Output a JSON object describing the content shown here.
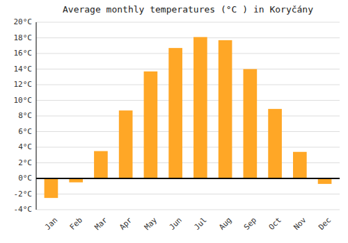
{
  "chart_data": {
    "type": "bar",
    "title": "Average monthly temperatures (°C ) in Koryčány",
    "categories": [
      "Jan",
      "Feb",
      "Mar",
      "Apr",
      "May",
      "Jun",
      "Jul",
      "Aug",
      "Sep",
      "Oct",
      "Nov",
      "Dec"
    ],
    "values": [
      -2.5,
      -0.5,
      3.5,
      8.7,
      13.7,
      16.7,
      18.1,
      17.7,
      14.0,
      8.9,
      3.4,
      -0.7
    ],
    "color": "#FFA726",
    "ylim": [
      -4,
      20
    ],
    "yticks": [
      {
        "value": -4,
        "label": "-4°C"
      },
      {
        "value": -2,
        "label": "-2°C"
      },
      {
        "value": 0,
        "label": "0°C"
      },
      {
        "value": 2,
        "label": "2°C"
      },
      {
        "value": 4,
        "label": "4°C"
      },
      {
        "value": 6,
        "label": "6°C"
      },
      {
        "value": 8,
        "label": "8°C"
      },
      {
        "value": 10,
        "label": "10°C"
      },
      {
        "value": 12,
        "label": "12°C"
      },
      {
        "value": 14,
        "label": "14°C"
      },
      {
        "value": 16,
        "label": "16°C"
      },
      {
        "value": 18,
        "label": "18°C"
      },
      {
        "value": 20,
        "label": "20°C"
      }
    ],
    "grid": true
  }
}
